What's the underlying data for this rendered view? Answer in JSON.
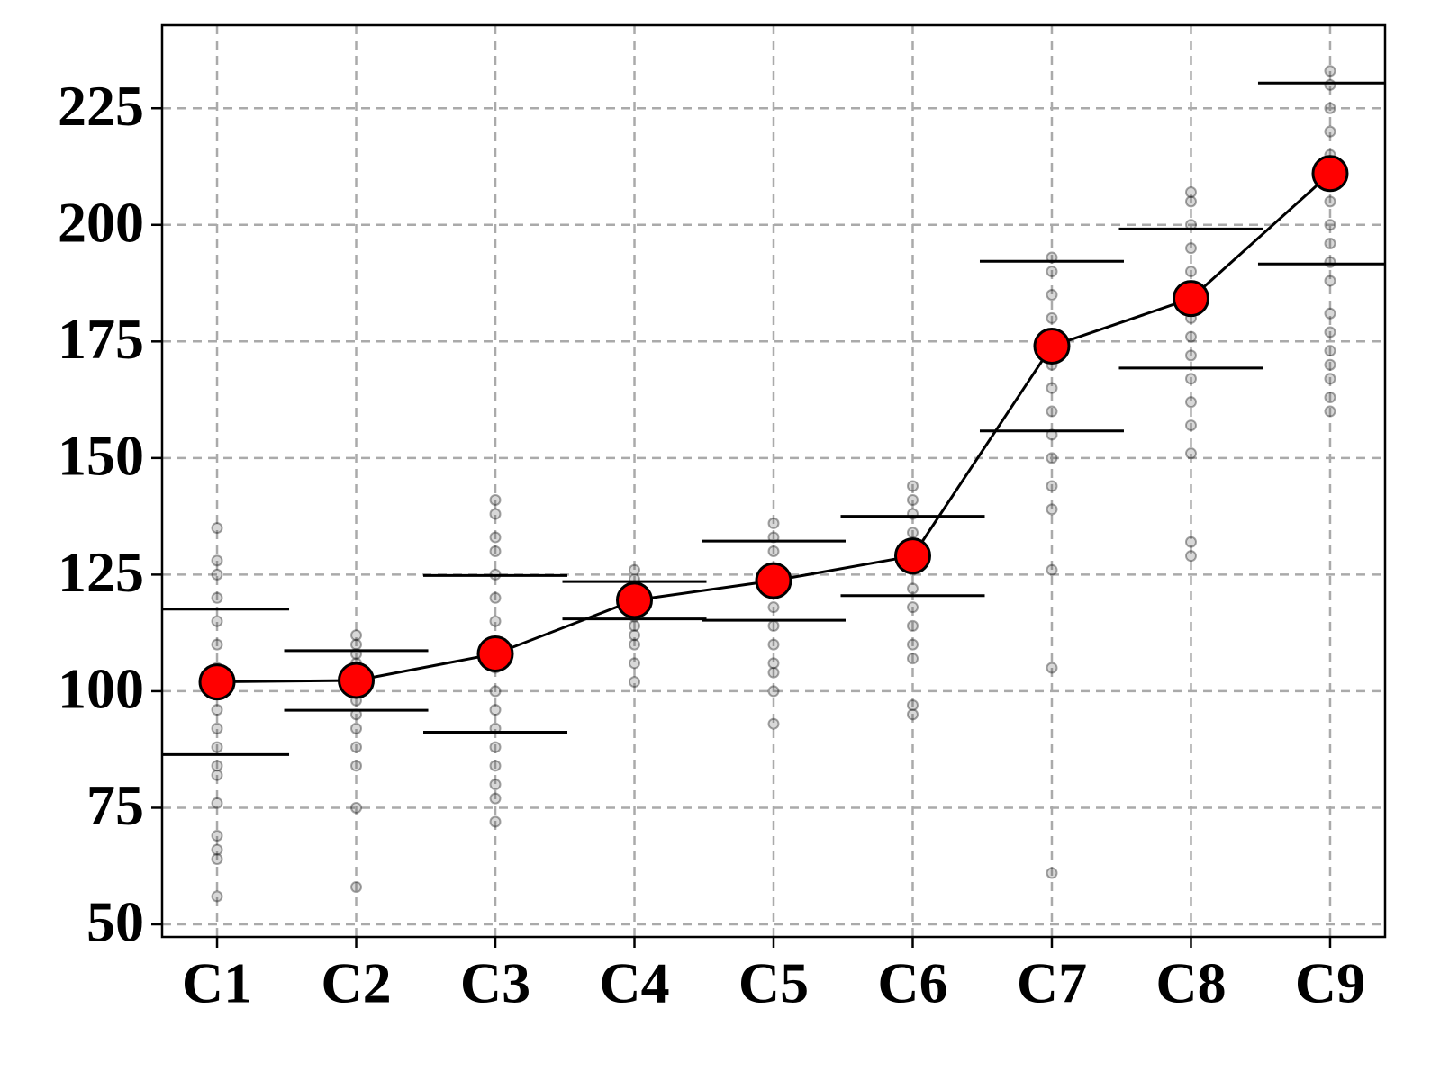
{
  "chart_data": {
    "type": "scatter-mean-error",
    "categories": [
      "C1",
      "C2",
      "C3",
      "C4",
      "C5",
      "C6",
      "C7",
      "C8",
      "C9"
    ],
    "values": [
      102,
      102.3,
      108,
      119.5,
      123.7,
      129,
      174,
      184.2,
      211
    ],
    "errors": [
      15.6,
      6.4,
      16.8,
      4,
      8.5,
      8.5,
      18.2,
      14.9,
      19.4
    ],
    "points": [
      [
        56,
        64,
        66,
        69,
        76,
        82,
        84,
        88,
        92,
        96,
        100,
        105,
        110,
        115,
        120,
        125,
        128,
        135
      ],
      [
        58,
        75,
        84,
        88,
        92,
        95,
        98,
        100,
        102,
        104,
        106,
        108,
        110,
        112
      ],
      [
        72,
        77,
        80,
        84,
        88,
        92,
        96,
        100,
        105,
        110,
        115,
        120,
        125,
        130,
        133,
        138,
        141
      ],
      [
        102,
        106,
        110,
        112,
        114,
        116,
        118,
        120,
        122,
        124,
        126
      ],
      [
        93,
        100,
        104,
        106,
        110,
        114,
        118,
        122,
        126,
        130,
        133,
        136
      ],
      [
        95,
        97,
        107,
        110,
        114,
        118,
        122,
        126,
        130,
        134,
        138,
        141,
        144
      ],
      [
        61,
        105,
        126,
        139,
        144,
        150,
        155,
        160,
        165,
        170,
        175,
        180,
        185,
        190,
        193
      ],
      [
        129,
        132,
        151,
        157,
        162,
        167,
        172,
        176,
        180,
        185,
        190,
        195,
        200,
        205,
        207
      ],
      [
        160,
        163,
        167,
        170,
        173,
        177,
        181,
        188,
        192,
        196,
        200,
        205,
        210,
        215,
        220,
        225,
        230,
        233
      ]
    ],
    "color": "#ff0000",
    "ylim": [
      47.3,
      242.8
    ],
    "yticks": [
      50,
      75,
      100,
      125,
      150,
      175,
      200,
      225
    ],
    "grid": true
  }
}
